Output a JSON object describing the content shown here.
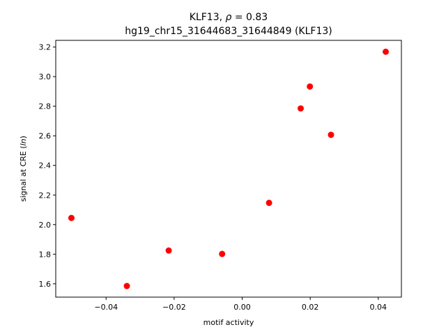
{
  "chart_data": {
    "type": "scatter",
    "title_main": "KLF13, ",
    "title_rho_symbol": "ρ",
    "title_rho_value": " = 0.83",
    "subtitle": "hg19_chr15_31644683_31644849 (KLF13)",
    "xlabel": "motif activity",
    "ylabel_main": "signal at CRE (",
    "ylabel_italic": "ln",
    "ylabel_end": ")",
    "xlim": [
      -0.0548,
      0.0468
    ],
    "ylim": [
      1.51,
      3.245
    ],
    "x_ticks": [
      -0.04,
      -0.02,
      0.0,
      0.02,
      0.04
    ],
    "x_tick_labels": [
      "−0.04",
      "−0.02",
      "0.00",
      "0.02",
      "0.04"
    ],
    "y_ticks": [
      1.6,
      1.8,
      2.0,
      2.2,
      2.4,
      2.6,
      2.8,
      3.0,
      3.2
    ],
    "y_tick_labels": [
      "1.6",
      "1.8",
      "2.0",
      "2.2",
      "2.4",
      "2.6",
      "2.8",
      "3.0",
      "3.2"
    ],
    "marker_color": "#ff0000",
    "points": [
      {
        "x": -0.0502,
        "y": 2.045
      },
      {
        "x": -0.0339,
        "y": 1.585
      },
      {
        "x": -0.0216,
        "y": 1.825
      },
      {
        "x": -0.0059,
        "y": 1.802
      },
      {
        "x": 0.0079,
        "y": 2.147
      },
      {
        "x": 0.0172,
        "y": 2.785
      },
      {
        "x": 0.0199,
        "y": 2.933
      },
      {
        "x": 0.0261,
        "y": 2.607
      },
      {
        "x": 0.0422,
        "y": 3.168
      }
    ]
  }
}
